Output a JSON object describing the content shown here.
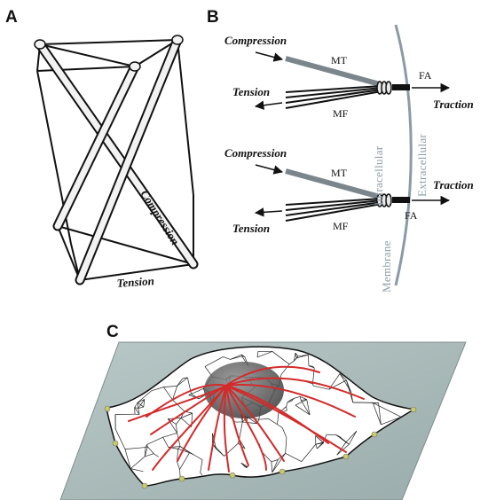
{
  "panels": {
    "a": {
      "letter": "A",
      "compression": "Compression",
      "tension": "Tension"
    },
    "b": {
      "letter": "B",
      "top": {
        "compression": "Compression",
        "tension": "Tension",
        "mt": "MT",
        "mf": "MF",
        "fa": "FA",
        "traction": "Traction"
      },
      "bottom": {
        "compression": "Compression",
        "tension": "Tension",
        "mt": "MT",
        "mf": "MF",
        "fa": "FA",
        "traction": "Traction"
      },
      "intracellular": "Intracellular",
      "extracellular": "Extracellular",
      "membrane": "Membrane"
    },
    "c": {
      "letter": "C"
    }
  },
  "colors": {
    "rod_fill": "#f2f2f2",
    "stroke": "#111111",
    "microtubule": "#7a858c",
    "membrane": "#8a9aa6",
    "substrate": "#a9b9b8",
    "nucleus": "#555555",
    "fibers": "#d42a2a",
    "anchors": "#c9cc66"
  }
}
